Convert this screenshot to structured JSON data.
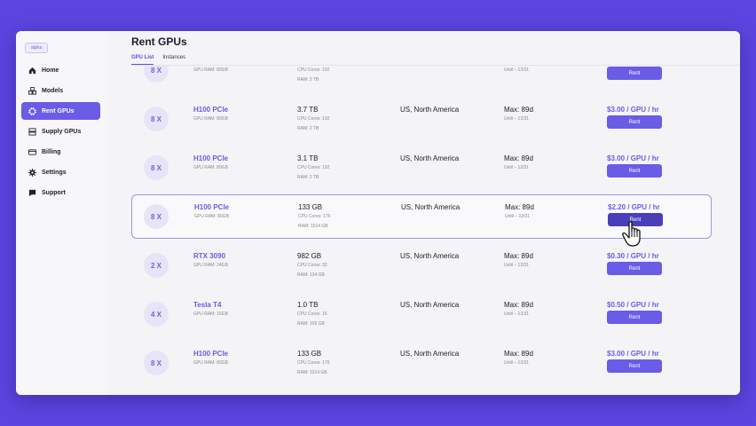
{
  "sidebar": {
    "badge": "alpha",
    "items": [
      {
        "label": "Home",
        "icon": "home-icon"
      },
      {
        "label": "Models",
        "icon": "cubes-icon"
      },
      {
        "label": "Rent GPUs",
        "icon": "chip-icon",
        "active": true
      },
      {
        "label": "Supply GPUs",
        "icon": "server-icon"
      },
      {
        "label": "Billing",
        "icon": "card-icon"
      },
      {
        "label": "Settings",
        "icon": "gear-icon"
      },
      {
        "label": "Support",
        "icon": "chat-icon"
      }
    ]
  },
  "header": {
    "title": "Rent GPUs",
    "tabs": [
      {
        "label": "GPU List",
        "active": true
      },
      {
        "label": "Instances"
      }
    ]
  },
  "rows": [
    {
      "count": "8 X",
      "gpu": "",
      "gpu_ram": "GPU RAM: 80GB",
      "storage": "",
      "cores": "CPU Cores: 192",
      "ram": "RAM: 2 TB",
      "location": "",
      "max": "",
      "until": "Until – 12/31",
      "price": "",
      "rent": "Rent"
    },
    {
      "count": "8 X",
      "gpu": "H100 PCIe",
      "gpu_ram": "GPU RAM: 80GB",
      "storage": "3.7 TB",
      "cores": "CPU Cores: 192",
      "ram": "RAM: 2 TB",
      "location": "US, North America",
      "max": "Max: 89d",
      "until": "Until – 12/31",
      "price": "$3.00 / GPU / hr",
      "rent": "Rent"
    },
    {
      "count": "8 X",
      "gpu": "H100 PCIe",
      "gpu_ram": "GPU RAM: 80GB",
      "storage": "3.1 TB",
      "cores": "CPU Cores: 192",
      "ram": "RAM: 2 TB",
      "location": "US, North America",
      "max": "Max: 89d",
      "until": "Until – 12/31",
      "price": "$3.00 / GPU / hr",
      "rent": "Rent"
    },
    {
      "count": "8 X",
      "gpu": "H100 PCIe",
      "gpu_ram": "GPU RAM: 80GB",
      "storage": "133 GB",
      "cores": "CPU Cores: 176",
      "ram": "RAM: 1014 GB",
      "location": "US, North America",
      "max": "Max: 89d",
      "until": "Until – 12/31",
      "price": "$2.20 / GPU / hr",
      "rent": "Rent",
      "selected": true
    },
    {
      "count": "2 X",
      "gpu": "RTX 3090",
      "gpu_ram": "GPU RAM: 24GB",
      "storage": "982 GB",
      "cores": "CPU Cores: 32",
      "ram": "RAM: 134 GB",
      "location": "US, North America",
      "max": "Max: 89d",
      "until": "Until – 12/31",
      "price": "$0.30 / GPU / hr",
      "rent": "Rent"
    },
    {
      "count": "4 X",
      "gpu": "Tesla T4",
      "gpu_ram": "GPU RAM: 16GB",
      "storage": "1.0 TB",
      "cores": "CPU Cores: 16",
      "ram": "RAM: 109 GB",
      "location": "US, North America",
      "max": "Max: 89d",
      "until": "Until – 12/31",
      "price": "$0.50 / GPU / hr",
      "rent": "Rent"
    },
    {
      "count": "8 X",
      "gpu": "H100 PCIe",
      "gpu_ram": "GPU RAM: 80GB",
      "storage": "133 GB",
      "cores": "CPU Cores: 176",
      "ram": "RAM: 1014 GB",
      "location": "US, North America",
      "max": "Max: 89d",
      "until": "Until – 12/31",
      "price": "$3.00 / GPU / hr",
      "rent": "Rent"
    }
  ],
  "colors": {
    "accent": "#6a5ce6",
    "background": "#5b45e0"
  }
}
